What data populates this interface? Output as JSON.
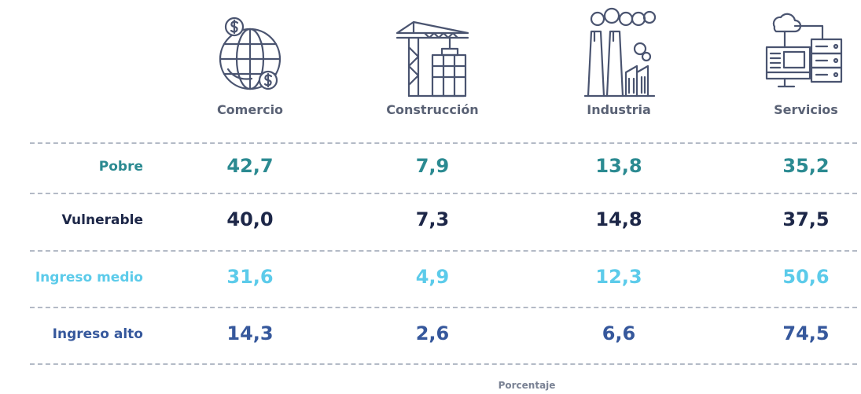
{
  "table": {
    "columns": [
      "Comercio",
      "Construcción",
      "Industria",
      "Servicios"
    ],
    "rows": [
      {
        "label": "Pobre",
        "cells": [
          "42,7",
          "7,9",
          "13,8",
          "35,2"
        ]
      },
      {
        "label": "Vulnerable",
        "cells": [
          "40,0",
          "7,3",
          "14,8",
          "37,5"
        ]
      },
      {
        "label": "Ingreso medio",
        "cells": [
          "31,6",
          "4,9",
          "12,3",
          "50,6"
        ]
      },
      {
        "label": "Ingreso alto",
        "cells": [
          "14,3",
          "2,6",
          "6,6",
          "74,5"
        ]
      }
    ],
    "footer": "Porcentaje"
  }
}
